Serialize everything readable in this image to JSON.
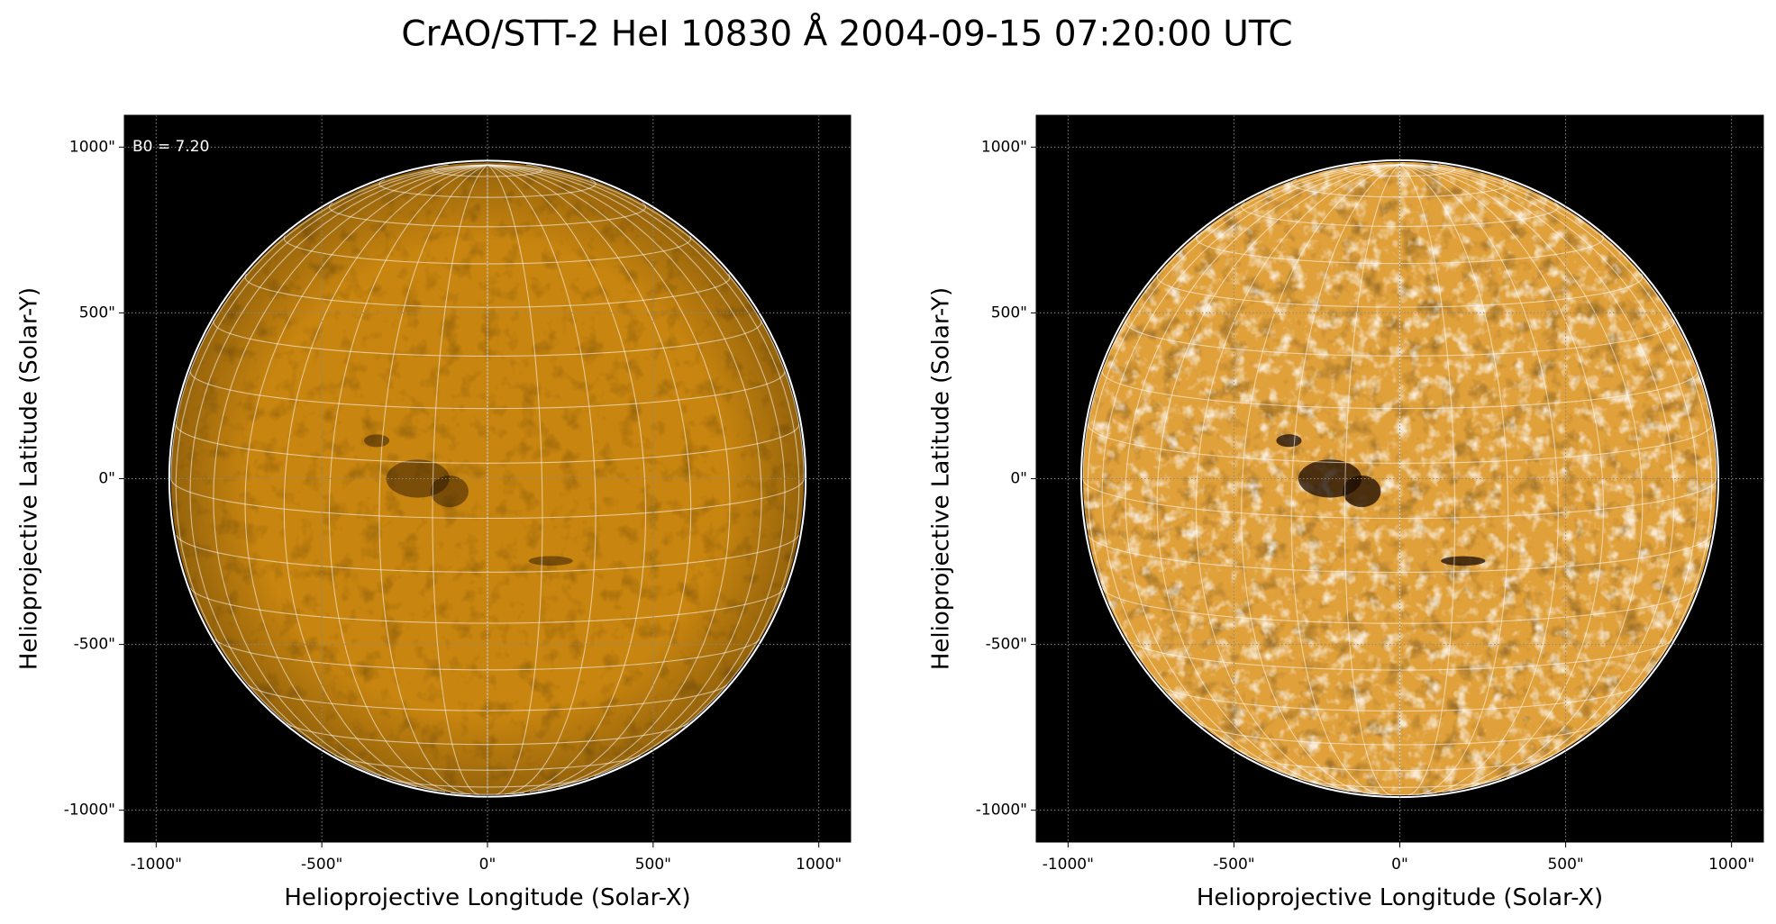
{
  "title": "CrAO/STT-2 HeI 10830 Å 2004-09-15 07:20:00 UTC",
  "chart_data": [
    {
      "type": "image",
      "xlabel": "Helioprojective Longitude (Solar-X)",
      "ylabel": "Helioprojective Latitude (Solar-Y)",
      "annotation": "B0 = 7.20",
      "b0": 7.2,
      "disk_radius": 955,
      "grid": true,
      "color": "#c8850f",
      "xlim": [
        -1096,
        1096
      ],
      "ylim": [
        -1096,
        1096
      ],
      "xticks": [
        {
          "value": -1000,
          "label": "-1000\""
        },
        {
          "value": -500,
          "label": "-500\""
        },
        {
          "value": 0,
          "label": "0\""
        },
        {
          "value": 500,
          "label": "500\""
        },
        {
          "value": 1000,
          "label": "1000\""
        }
      ],
      "yticks": [
        {
          "value": -1000,
          "label": "-1000\""
        },
        {
          "value": -500,
          "label": "-500\""
        },
        {
          "value": 0,
          "label": "0\""
        },
        {
          "value": 500,
          "label": "500\""
        },
        {
          "value": 1000,
          "label": "1000\""
        }
      ]
    },
    {
      "type": "image",
      "xlabel": "Helioprojective Longitude (Solar-X)",
      "ylabel": "Helioprojective Latitude (Solar-Y)",
      "b0": 7.2,
      "disk_radius": 955,
      "grid": true,
      "color": "#e0a03a",
      "xlim": [
        -1096,
        1096
      ],
      "ylim": [
        -1096,
        1096
      ],
      "xticks": [
        {
          "value": -1000,
          "label": "-1000\""
        },
        {
          "value": -500,
          "label": "-500\""
        },
        {
          "value": 0,
          "label": "0\""
        },
        {
          "value": 500,
          "label": "500\""
        },
        {
          "value": 1000,
          "label": "1000\""
        }
      ],
      "yticks": [
        {
          "value": -1000,
          "label": "-1000\""
        },
        {
          "value": -500,
          "label": "-500\""
        },
        {
          "value": 0,
          "label": "0\""
        },
        {
          "value": 500,
          "label": "500\""
        },
        {
          "value": 1000,
          "label": "1000\""
        }
      ]
    }
  ]
}
